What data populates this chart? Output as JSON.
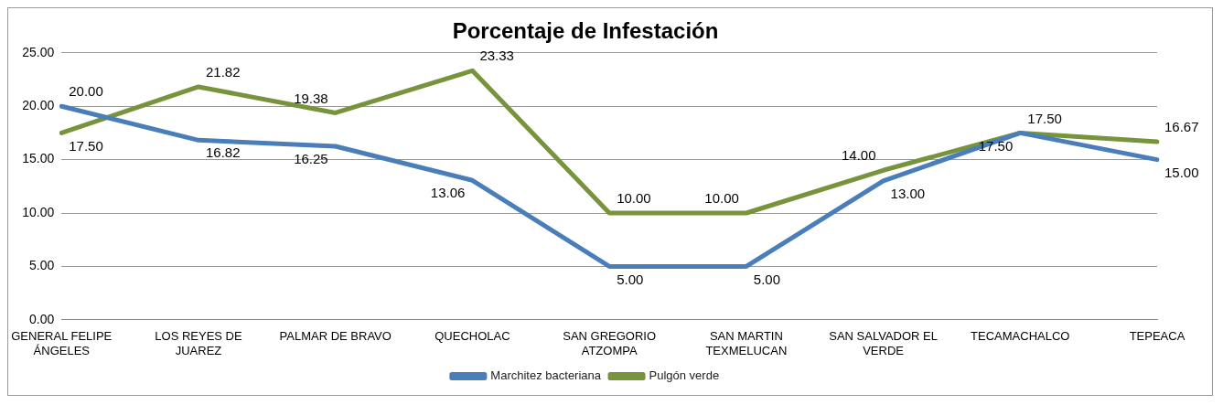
{
  "chart_data": {
    "type": "line",
    "title": "Porcentaje de Infestación",
    "categories": [
      "GENERAL FELIPE ÁNGELES",
      "LOS REYES DE JUAREZ",
      "PALMAR DE BRAVO",
      "QUECHOLAC",
      "SAN GREGORIO ATZOMPA",
      "SAN MARTIN TEXMELUCAN",
      "SAN SALVADOR EL VERDE",
      "TECAMACHALCO",
      "TEPEACA"
    ],
    "series": [
      {
        "name": "Marchitez bacteriana",
        "color": "#4a7ebb",
        "values": [
          20.0,
          16.82,
          16.25,
          13.06,
          5.0,
          5.0,
          13.0,
          17.5,
          15.0
        ],
        "value_labels": [
          "20.00",
          "16.82",
          "16.25",
          "13.06",
          "5.00",
          "5.00",
          "13.00",
          "17.50",
          "15.00"
        ]
      },
      {
        "name": "Pulgón verde",
        "color": "#77933c",
        "values": [
          17.5,
          21.82,
          19.38,
          23.33,
          10.0,
          10.0,
          14.0,
          17.5,
          16.67
        ],
        "value_labels": [
          "17.50",
          "21.82",
          "19.38",
          "23.33",
          "10.00",
          "10.00",
          "14.00",
          "17.50",
          "16.67"
        ]
      }
    ],
    "ylim": [
      0,
      25
    ],
    "yticks": [
      {
        "value": 0,
        "label": "0.00"
      },
      {
        "value": 5,
        "label": "5.00"
      },
      {
        "value": 10,
        "label": "10.00"
      },
      {
        "value": 15,
        "label": "15.00"
      },
      {
        "value": 20,
        "label": "20.00"
      },
      {
        "value": 25,
        "label": "25.00"
      }
    ],
    "grid": "y",
    "legend": "bottom",
    "marker": "none",
    "line_style": "solid"
  }
}
